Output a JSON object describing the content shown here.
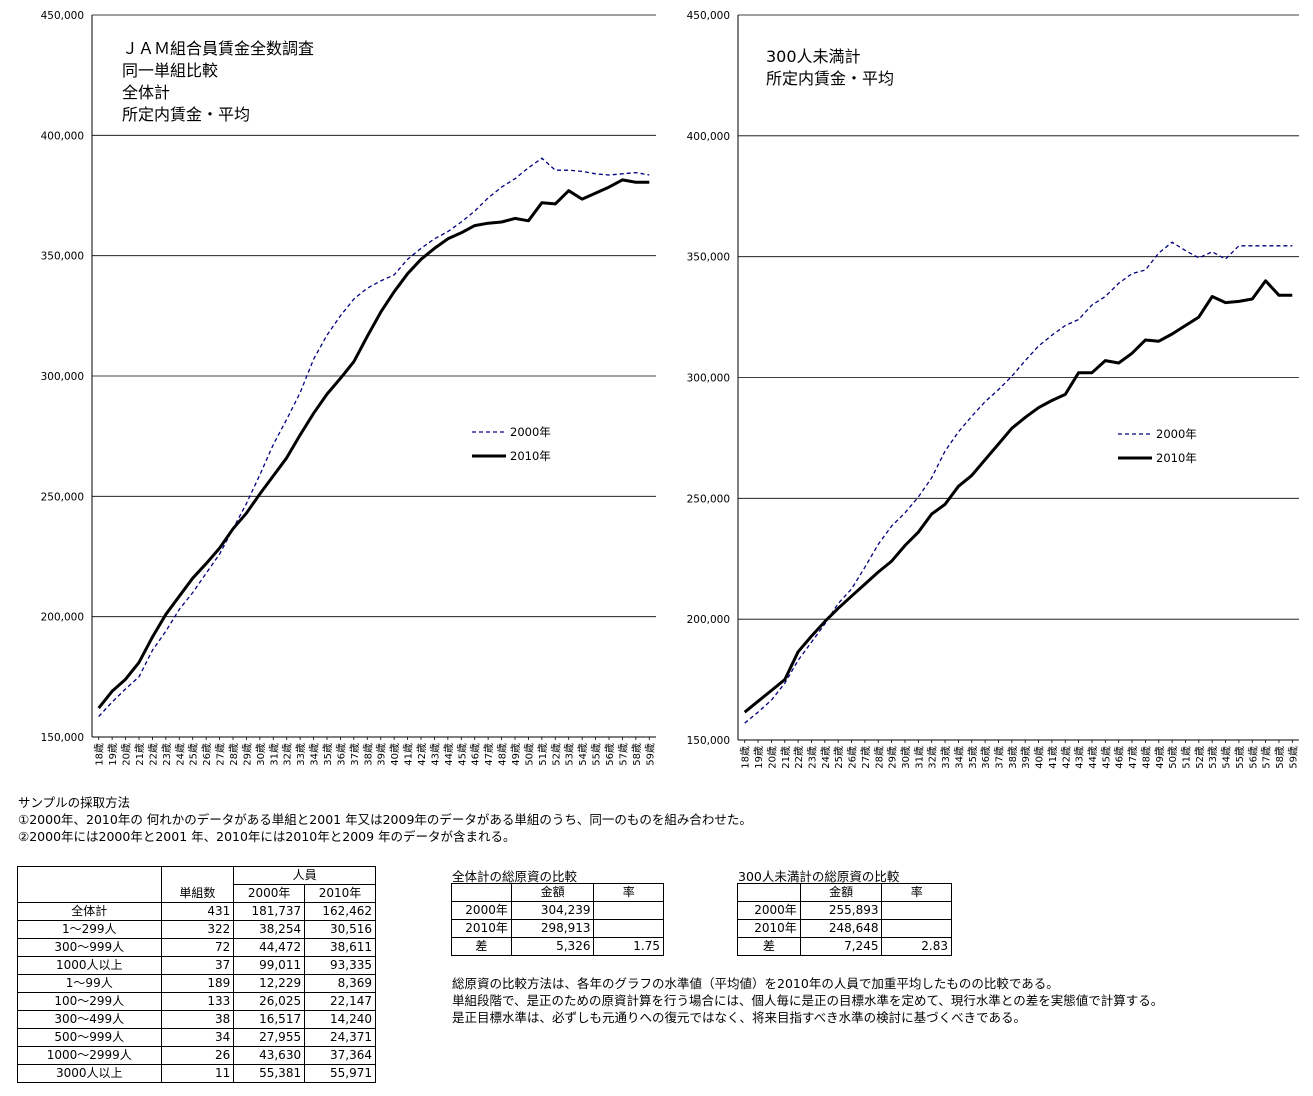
{
  "chart_data": [
    {
      "type": "line",
      "title_lines": [
        "ＪＡＭ組合員賃金全数調査",
        "同一単組比較",
        "全体計",
        "所定内賃金・平均"
      ],
      "categories": [
        "18歳",
        "19歳",
        "20歳",
        "21歳",
        "22歳",
        "23歳",
        "24歳",
        "25歳",
        "26歳",
        "27歳",
        "28歳",
        "29歳",
        "30歳",
        "31歳",
        "32歳",
        "33歳",
        "34歳",
        "35歳",
        "36歳",
        "37歳",
        "38歳",
        "39歳",
        "40歳",
        "41歳",
        "42歳",
        "43歳",
        "44歳",
        "45歳",
        "46歳",
        "47歳",
        "48歳",
        "49歳",
        "50歳",
        "51歳",
        "52歳",
        "53歳",
        "54歳",
        "55歳",
        "56歳",
        "57歳",
        "58歳",
        "59歳"
      ],
      "yticks": [
        "150,000",
        "200,000",
        "250,000",
        "300,000",
        "350,000",
        "400,000",
        "450,000"
      ],
      "ylim": [
        150000,
        450000
      ],
      "grid": true,
      "legend_position": "middle-right",
      "series": [
        {
          "name": "2000年",
          "style": "dashed",
          "color": "#000080",
          "values": [
            158500,
            164500,
            170000,
            175000,
            186000,
            194000,
            203000,
            210000,
            218000,
            226000,
            236500,
            247000,
            259000,
            271500,
            282000,
            293000,
            307000,
            317000,
            325000,
            332000,
            336500,
            339500,
            342000,
            348500,
            353000,
            357000,
            360000,
            364000,
            368500,
            374000,
            378500,
            382000,
            386500,
            390500,
            385500,
            385500,
            385000,
            384000,
            383500,
            384000,
            384500,
            383500
          ]
        },
        {
          "name": "2010年",
          "style": "solid",
          "color": "#000000",
          "values": [
            162000,
            169000,
            174000,
            181000,
            191500,
            201000,
            208500,
            216000,
            222000,
            228500,
            236500,
            243000,
            251000,
            258500,
            266000,
            275500,
            284500,
            292500,
            299000,
            306000,
            316500,
            326500,
            335000,
            342500,
            348500,
            353000,
            357000,
            359500,
            362500,
            363500,
            364000,
            365500,
            364500,
            372000,
            371500,
            377000,
            373500,
            376000,
            378500,
            381500,
            380500,
            380500
          ]
        }
      ]
    },
    {
      "type": "line",
      "title_lines": [
        "300人未満計",
        "所定内賃金・平均"
      ],
      "categories": [
        "18歳",
        "19歳",
        "20歳",
        "21歳",
        "22歳",
        "23歳",
        "24歳",
        "25歳",
        "26歳",
        "27歳",
        "28歳",
        "29歳",
        "30歳",
        "31歳",
        "32歳",
        "33歳",
        "34歳",
        "35歳",
        "36歳",
        "37歳",
        "38歳",
        "39歳",
        "40歳",
        "41歳",
        "42歳",
        "43歳",
        "44歳",
        "45歳",
        "46歳",
        "47歳",
        "48歳",
        "49歳",
        "50歳",
        "51歳",
        "52歳",
        "53歳",
        "54歳",
        "55歳",
        "56歳",
        "57歳",
        "58歳",
        "59歳"
      ],
      "yticks": [
        "150,000",
        "200,000",
        "250,000",
        "300,000",
        "350,000",
        "400,000",
        "450,000"
      ],
      "ylim": [
        150000,
        450000
      ],
      "grid": true,
      "legend_position": "middle-right",
      "series": [
        {
          "name": "2000年",
          "style": "dashed",
          "color": "#000080",
          "values": [
            157000,
            161500,
            166500,
            173500,
            183000,
            190500,
            198000,
            206500,
            212500,
            221500,
            231000,
            238500,
            244000,
            250500,
            258500,
            269500,
            277500,
            284000,
            290000,
            295000,
            300500,
            307000,
            313000,
            317500,
            321500,
            324000,
            330000,
            333500,
            339000,
            343000,
            344500,
            351500,
            356000,
            352500,
            349500,
            352000,
            349000,
            354500,
            354500,
            354500,
            354500,
            354500
          ]
        },
        {
          "name": "2010年",
          "style": "solid",
          "color": "#000000",
          "values": [
            161500,
            166000,
            170500,
            175000,
            186500,
            193000,
            199000,
            204500,
            209500,
            214500,
            219500,
            224000,
            230500,
            236000,
            243500,
            247500,
            255000,
            259500,
            266000,
            272500,
            279000,
            283500,
            287500,
            290500,
            293000,
            302000,
            302000,
            307000,
            306000,
            310000,
            315500,
            315000,
            318000,
            321500,
            325000,
            333500,
            331000,
            331500,
            332500,
            340000,
            334000,
            334000
          ]
        }
      ]
    }
  ],
  "notes": {
    "title": "サンプルの採取方法",
    "line1": "①2000年、2010年の 何れかのデータがある単組と2001 年又は2009年のデータがある単組のうち、同一のものを組み合わせた。",
    "line2": "②2000年には2000年と2001 年、2010年には2010年と2009 年のデータが含まれる。"
  },
  "table_main": {
    "header_units": "単組数",
    "header_people": "人員",
    "header_2000": "2000年",
    "header_2010": "2010年",
    "rows": [
      {
        "label": "全体計",
        "units": "431",
        "p2000": "181,737",
        "p2010": "162,462"
      },
      {
        "label": "1～299人",
        "units": "322",
        "p2000": "38,254",
        "p2010": "30,516"
      },
      {
        "label": "300～999人",
        "units": "72",
        "p2000": "44,472",
        "p2010": "38,611"
      },
      {
        "label": "1000人以上",
        "units": "37",
        "p2000": "99,011",
        "p2010": "93,335"
      },
      {
        "label": "1～99人",
        "units": "189",
        "p2000": "12,229",
        "p2010": "8,369"
      },
      {
        "label": "100～299人",
        "units": "133",
        "p2000": "26,025",
        "p2010": "22,147"
      },
      {
        "label": "300～499人",
        "units": "38",
        "p2000": "16,517",
        "p2010": "14,240"
      },
      {
        "label": "500～999人",
        "units": "34",
        "p2000": "27,955",
        "p2010": "24,371"
      },
      {
        "label": "1000～2999人",
        "units": "26",
        "p2000": "43,630",
        "p2010": "37,364"
      },
      {
        "label": "3000人以上",
        "units": "11",
        "p2000": "55,381",
        "p2010": "55,971"
      }
    ]
  },
  "table_total": {
    "caption": "全体計の総原資の比較",
    "h_amount": "金額",
    "h_rate": "率",
    "r1_label": "2000年",
    "r1_amount": "304,239",
    "r2_label": "2010年",
    "r2_amount": "298,913",
    "r3_label": "差",
    "r3_amount": "5,326",
    "r3_rate": "1.75"
  },
  "table_small": {
    "caption": "300人未満計の総原資の比較",
    "h_amount": "金額",
    "h_rate": "率",
    "r1_label": "2000年",
    "r1_amount": "255,893",
    "r2_label": "2010年",
    "r2_amount": "248,648",
    "r3_label": "差",
    "r3_amount": "7,245",
    "r3_rate": "2.83"
  },
  "explanation": {
    "line1": "総原資の比較方法は、各年のグラフの水準値（平均値）を2010年の人員で加重平均したものの比較である。",
    "line2": "単組段階で、是正のための原資計算を行う場合には、個人毎に是正の目標水準を定めて、現行水準との差を実態値で計算する。",
    "line3": "是正目標水準は、必ずしも元通りへの復元ではなく、将来目指すべき水準の検討に基づくべきである。"
  }
}
